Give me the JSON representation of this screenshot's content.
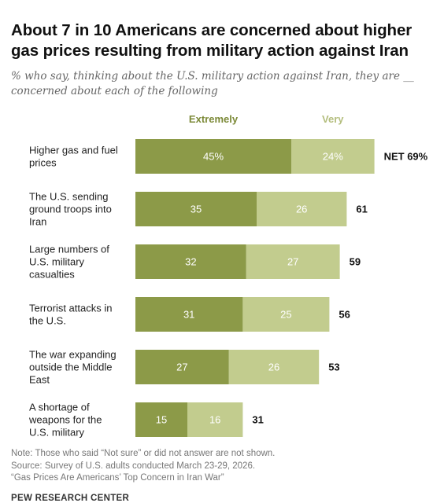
{
  "title": "About 7 in 10 Americans are concerned about higher gas prices resulting from military action against Iran",
  "subtitle": "% who say, thinking about the U.S. military action against Iran, they are __ concerned about each of the following",
  "colors": {
    "extremely": "#8c9a48",
    "very": "#c2cc8e",
    "extremely_label": "#7c8a38",
    "very_label": "#b4be7e"
  },
  "chart_data": {
    "type": "bar",
    "orientation": "horizontal",
    "stacked": true,
    "categories": [
      [
        "Higher gas and fuel",
        "prices"
      ],
      [
        "The U.S. sending",
        "ground troops into",
        "Iran"
      ],
      [
        "Large numbers of",
        "U.S. military",
        "casualties"
      ],
      [
        "Terrorist attacks in",
        "the U.S."
      ],
      [
        "The war expanding",
        "outside the Middle",
        "East"
      ],
      [
        "A shortage of",
        "weapons for the",
        "U.S. military"
      ]
    ],
    "series": [
      {
        "name": "Extremely",
        "values": [
          45,
          35,
          32,
          31,
          27,
          15
        ],
        "labels": [
          "45%",
          "35",
          "32",
          "31",
          "27",
          "15"
        ]
      },
      {
        "name": "Very",
        "values": [
          24,
          26,
          27,
          25,
          26,
          16
        ],
        "labels": [
          "24%",
          "26",
          "27",
          "25",
          "26",
          "16"
        ]
      }
    ],
    "net": {
      "values": [
        69,
        61,
        59,
        56,
        53,
        31
      ],
      "labels": [
        "NET 69%",
        "61",
        "59",
        "56",
        "53",
        "31"
      ]
    },
    "legend_position": "top",
    "grid": false
  },
  "notes": [
    "Note: Those who said “Not sure” or did not answer are not shown.",
    "Source: Survey of U.S. adults conducted March 23-29, 2026.",
    "“Gas Prices Are Americans’ Top Concern in Iran War”"
  ],
  "brand": "PEW RESEARCH CENTER"
}
